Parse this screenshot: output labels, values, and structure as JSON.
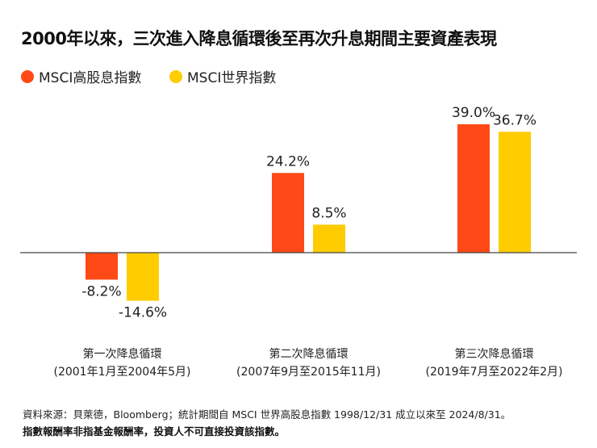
{
  "title": "2000年以來，三次進入降息循環後至再次升息期間主要資產表現",
  "footer": {
    "source": "資料來源：貝萊德，Bloomberg；統計期間自 MSCI 世界高股息指數 1998/12/31 成立以來至 2024/8/31。",
    "note": "指數報酬率非指基金報酬率，投資人不可直接投資該指數。"
  },
  "chart_data": {
    "type": "bar",
    "title": "2000年以來，三次進入降息循環後至再次升息期間主要資產表現",
    "categories": [
      [
        "第一次降息循環",
        "(2001年1月至2004年5月)"
      ],
      [
        "第二次降息循環",
        "(2007年9月至2015年11月)"
      ],
      [
        "第三次降息循環",
        "(2019年7月至2022年2月)"
      ]
    ],
    "series": [
      {
        "name": "MSCI高股息指數",
        "color": "#FF4A17",
        "values": [
          -8.2,
          24.2,
          39.0
        ],
        "labels": [
          "-8.2%",
          "24.2%",
          "39.0%"
        ]
      },
      {
        "name": "MSCI世界指數",
        "color": "#FFCC00",
        "values": [
          -14.6,
          8.5,
          36.7
        ],
        "labels": [
          "-14.6%",
          "8.5%",
          "36.7%"
        ]
      }
    ],
    "legend": "top-left",
    "grid": false,
    "unit": "%"
  }
}
